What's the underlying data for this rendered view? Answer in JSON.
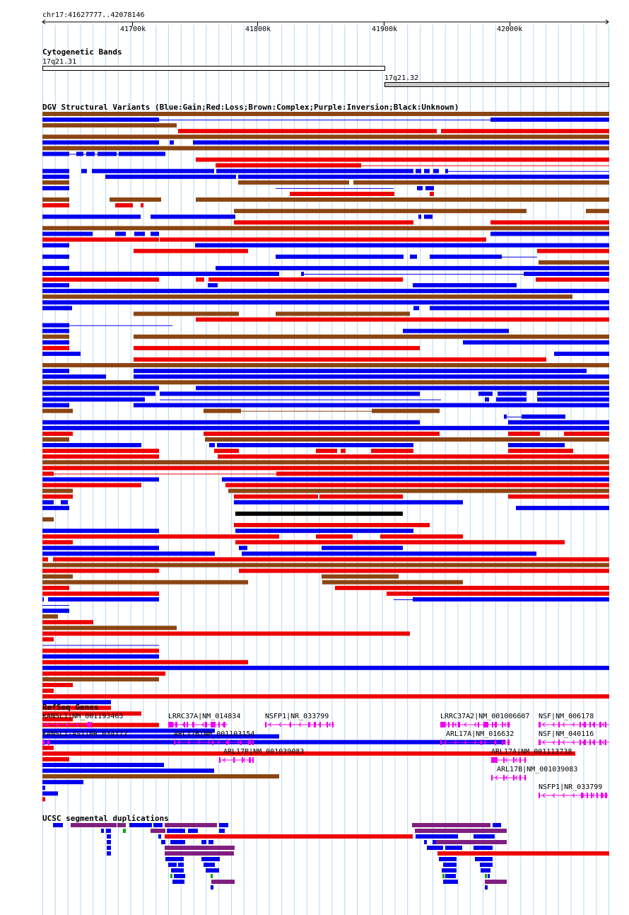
{
  "region": "chr17:41627777..42078146",
  "ruler": {
    "ticks": [
      "41700k",
      "41800k",
      "41900k",
      "42000k"
    ]
  },
  "tracks": {
    "cytobands": {
      "title": "Cytogenetic Bands",
      "bands": [
        "17q21.31",
        "17q21.32"
      ]
    },
    "dgv": {
      "title": "DGV Structural Variants (Blue:Gain;Red:Loss;Brown:Complex;Purple:Inversion;Black:Unknown)",
      "colors": {
        "gain": "#0000ee",
        "loss": "#ee0000",
        "complex": "#8b4513",
        "unknown": "#000000"
      }
    },
    "refseq": {
      "title": "RefSeq Genes",
      "genes": [
        "KANSL1|NM_001193465",
        "KANSL1-AS1|NR_034172",
        "LRRC37A|NM_014834",
        "ARL17B|NM_001103154",
        "ARL17B|NM_001039083",
        "NSFP1|NR_033799",
        "LRRC37A2|NM_001006607",
        "ARL17A|NM_016632",
        "ARL17A|NM_001113738",
        "ARL17B|NM_001039083",
        "NSF|NM_006178",
        "NSF|NM_040116",
        "NSFP1|NR_033799"
      ],
      "color": "#ee00ee"
    },
    "segdups": {
      "title": "UCSC segmental duplications",
      "colors": {
        "purple": "#7f1f7f",
        "blue": "#0000ee",
        "red": "#ee0000",
        "green": "#00aa00"
      }
    }
  }
}
